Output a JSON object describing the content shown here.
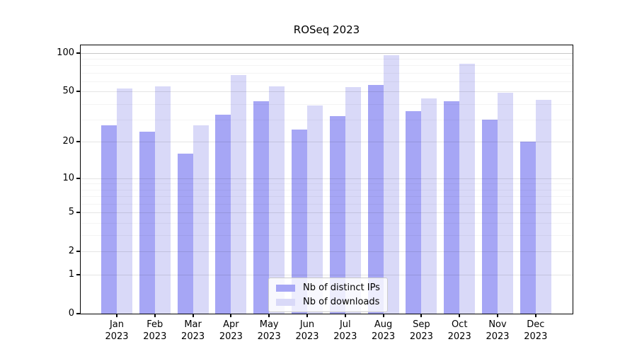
{
  "title": "ROSeq 2023",
  "chart_data": {
    "type": "bar",
    "title": "ROSeq 2023",
    "months": [
      "Jan",
      "Feb",
      "Mar",
      "Apr",
      "May",
      "Jun",
      "Jul",
      "Aug",
      "Sep",
      "Oct",
      "Nov",
      "Dec"
    ],
    "year": "2023",
    "series": [
      {
        "name": "Nb of distinct IPs",
        "color": "#a6a6f5",
        "values": [
          27,
          24,
          16,
          33,
          42,
          25,
          32,
          56,
          35,
          42,
          30,
          20
        ]
      },
      {
        "name": "Nb of downloads",
        "color": "#d9d9f8",
        "values": [
          53,
          55,
          27,
          67,
          55,
          39,
          54,
          96,
          44,
          82,
          49,
          43
        ]
      }
    ],
    "yscale": "symlog-log1p",
    "y_major_ticks": [
      0,
      1,
      2,
      5,
      10,
      20,
      50,
      100
    ],
    "y_minor_ticks": [
      3,
      4,
      6,
      7,
      8,
      9,
      30,
      40,
      60,
      70,
      80,
      90
    ],
    "ylim": [
      0,
      116
    ],
    "grid": true,
    "legend_position": "lower center",
    "xlabel": "",
    "ylabel": ""
  }
}
